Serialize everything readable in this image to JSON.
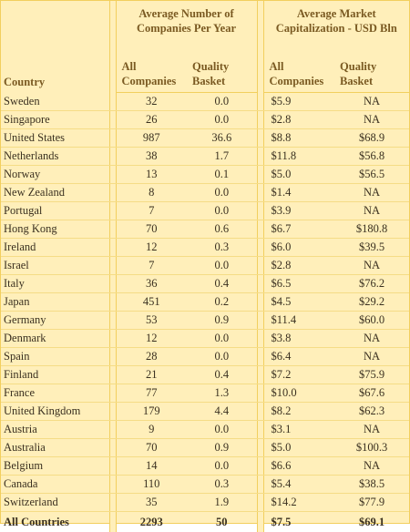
{
  "header": {
    "country_label": "Country",
    "group1_title": "Average Number of Companies Per Year",
    "group2_title": "Average Market Capitalization - USD Bln",
    "sub_all_companies": "All Companies",
    "sub_quality_basket": "Quality Basket"
  },
  "rows": [
    {
      "country": "Sweden",
      "all": "32",
      "quality": "0.0",
      "cap_all": "$5.9",
      "cap_quality": "NA"
    },
    {
      "country": "Singapore",
      "all": "26",
      "quality": "0.0",
      "cap_all": "$2.8",
      "cap_quality": "NA"
    },
    {
      "country": "United States",
      "all": "987",
      "quality": "36.6",
      "cap_all": "$8.8",
      "cap_quality": "$68.9"
    },
    {
      "country": "Netherlands",
      "all": "38",
      "quality": "1.7",
      "cap_all": "$11.8",
      "cap_quality": "$56.8"
    },
    {
      "country": "Norway",
      "all": "13",
      "quality": "0.1",
      "cap_all": "$5.0",
      "cap_quality": "$56.5"
    },
    {
      "country": "New Zealand",
      "all": "8",
      "quality": "0.0",
      "cap_all": "$1.4",
      "cap_quality": "NA"
    },
    {
      "country": "Portugal",
      "all": "7",
      "quality": "0.0",
      "cap_all": "$3.9",
      "cap_quality": "NA"
    },
    {
      "country": "Hong Kong",
      "all": "70",
      "quality": "0.6",
      "cap_all": "$6.7",
      "cap_quality": "$180.8"
    },
    {
      "country": "Ireland",
      "all": "12",
      "quality": "0.3",
      "cap_all": "$6.0",
      "cap_quality": "$39.5"
    },
    {
      "country": "Israel",
      "all": "7",
      "quality": "0.0",
      "cap_all": "$2.8",
      "cap_quality": "NA"
    },
    {
      "country": "Italy",
      "all": "36",
      "quality": "0.4",
      "cap_all": "$6.5",
      "cap_quality": "$76.2"
    },
    {
      "country": "Japan",
      "all": "451",
      "quality": "0.2",
      "cap_all": "$4.5",
      "cap_quality": "$29.2"
    },
    {
      "country": "Germany",
      "all": "53",
      "quality": "0.9",
      "cap_all": "$11.4",
      "cap_quality": "$60.0"
    },
    {
      "country": "Denmark",
      "all": "12",
      "quality": "0.0",
      "cap_all": "$3.8",
      "cap_quality": "NA"
    },
    {
      "country": "Spain",
      "all": "28",
      "quality": "0.0",
      "cap_all": "$6.4",
      "cap_quality": "NA"
    },
    {
      "country": "Finland",
      "all": "21",
      "quality": "0.4",
      "cap_all": "$7.2",
      "cap_quality": "$75.9"
    },
    {
      "country": "France",
      "all": "77",
      "quality": "1.3",
      "cap_all": "$10.0",
      "cap_quality": "$67.6"
    },
    {
      "country": "United Kingdom",
      "all": "179",
      "quality": "4.4",
      "cap_all": "$8.2",
      "cap_quality": "$62.3"
    },
    {
      "country": "Austria",
      "all": "9",
      "quality": "0.0",
      "cap_all": "$3.1",
      "cap_quality": "NA"
    },
    {
      "country": "Australia",
      "all": "70",
      "quality": "0.9",
      "cap_all": "$5.0",
      "cap_quality": "$100.3"
    },
    {
      "country": "Belgium",
      "all": "14",
      "quality": "0.0",
      "cap_all": "$6.6",
      "cap_quality": "NA"
    },
    {
      "country": "Canada",
      "all": "110",
      "quality": "0.3",
      "cap_all": "$5.4",
      "cap_quality": "$38.5"
    },
    {
      "country": "Switzerland",
      "all": "35",
      "quality": "1.9",
      "cap_all": "$14.2",
      "cap_quality": "$77.9"
    }
  ],
  "total": {
    "country": "All Countries",
    "all": "2293",
    "quality": "50",
    "cap_all": "$7.5",
    "cap_quality": "$69.1"
  },
  "colors": {
    "background": "#ffefba",
    "border": "#f2cf5e",
    "header_text": "#7a5a22",
    "body_text": "#3a3020"
  }
}
